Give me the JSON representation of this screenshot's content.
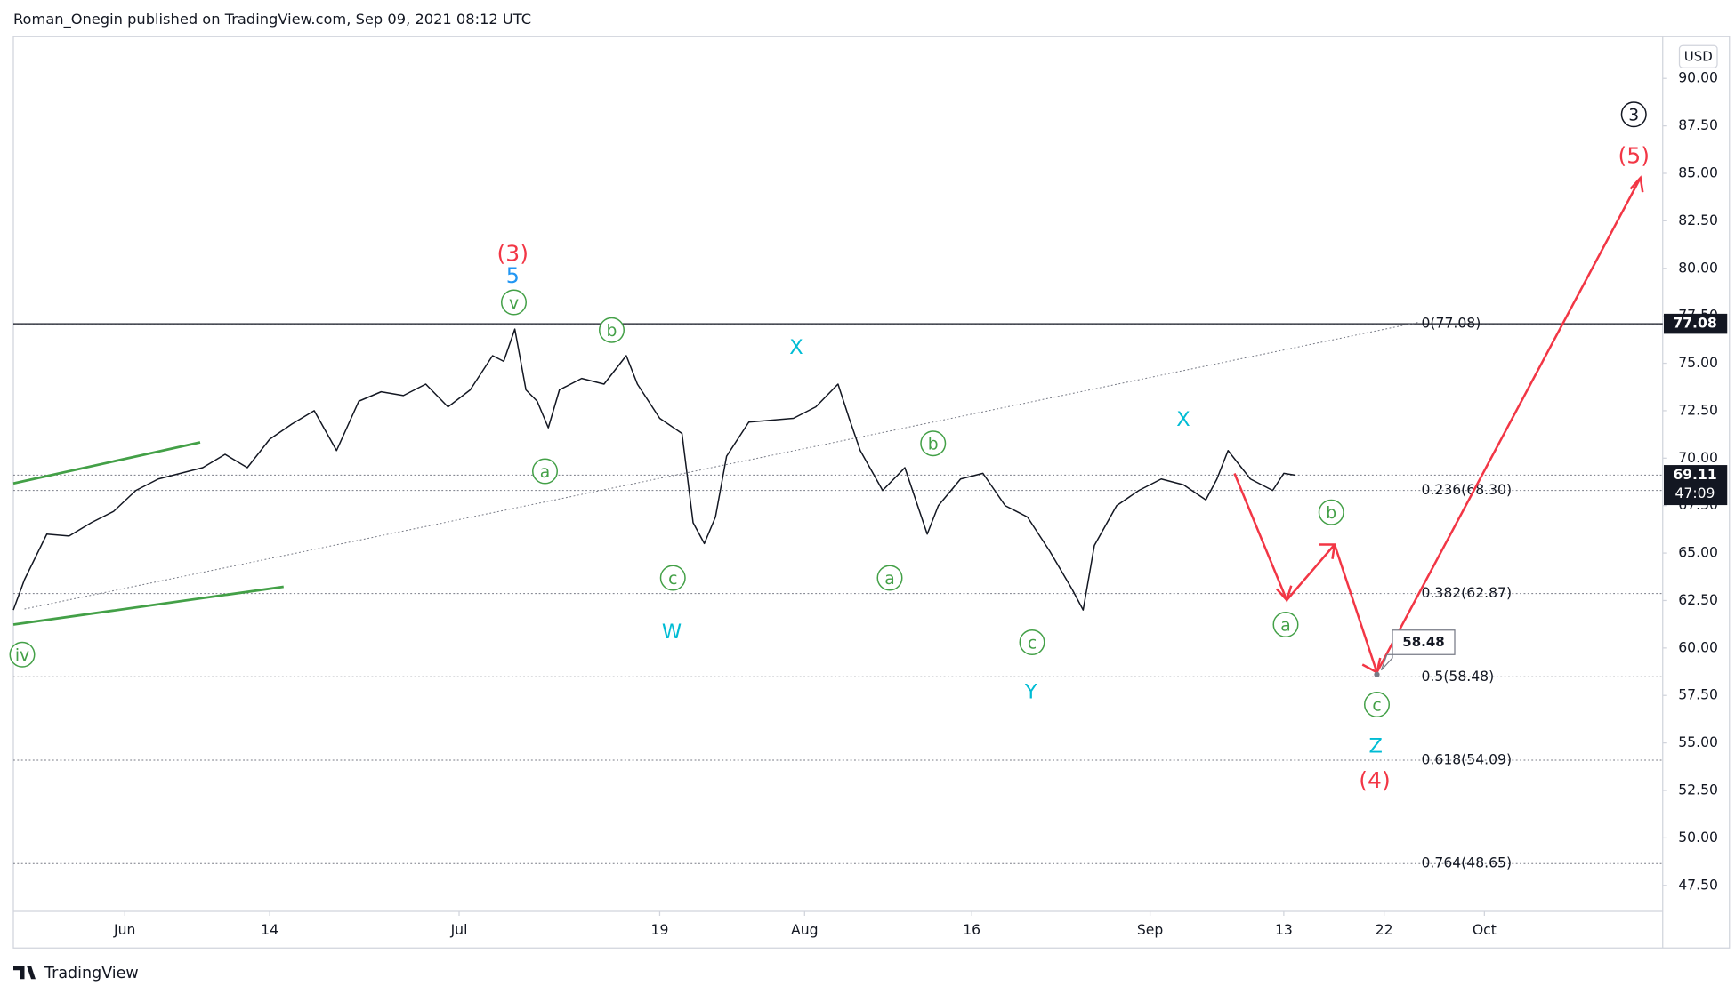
{
  "page": {
    "publisher_line": "Roman_Onegin published on TradingView.com, Sep 09, 2021 08:12 UTC",
    "brand": "TradingView"
  },
  "chart_data": {
    "type": "line",
    "color": "#131722",
    "currency": "USD",
    "x": [
      "2021-05-22",
      "2021-05-23",
      "2021-05-25",
      "2021-05-27",
      "2021-05-29",
      "2021-05-31",
      "2021-06-02",
      "2021-06-04",
      "2021-06-06",
      "2021-06-08",
      "2021-06-10",
      "2021-06-12",
      "2021-06-14",
      "2021-06-16",
      "2021-06-18",
      "2021-06-20",
      "2021-06-22",
      "2021-06-24",
      "2021-06-26",
      "2021-06-28",
      "2021-06-30",
      "2021-07-02",
      "2021-07-04",
      "2021-07-05",
      "2021-07-06",
      "2021-07-07",
      "2021-07-08",
      "2021-07-09",
      "2021-07-10",
      "2021-07-12",
      "2021-07-14",
      "2021-07-16",
      "2021-07-17",
      "2021-07-19",
      "2021-07-21",
      "2021-07-22",
      "2021-07-23",
      "2021-07-24",
      "2021-07-25",
      "2021-07-27",
      "2021-07-29",
      "2021-07-31",
      "2021-08-02",
      "2021-08-04",
      "2021-08-05",
      "2021-08-06",
      "2021-08-08",
      "2021-08-10",
      "2021-08-12",
      "2021-08-13",
      "2021-08-15",
      "2021-08-17",
      "2021-08-19",
      "2021-08-21",
      "2021-08-23",
      "2021-08-25",
      "2021-08-26",
      "2021-08-27",
      "2021-08-29",
      "2021-08-31",
      "2021-09-02",
      "2021-09-04",
      "2021-09-06",
      "2021-09-07",
      "2021-09-08",
      "2021-09-10",
      "2021-09-12",
      "2021-09-13",
      "2021-09-14"
    ],
    "values": [
      62.0,
      63.6,
      66.0,
      65.9,
      66.6,
      67.2,
      68.3,
      68.9,
      69.2,
      69.5,
      70.2,
      69.5,
      71.0,
      71.8,
      72.5,
      70.4,
      73.0,
      73.5,
      73.3,
      73.9,
      72.7,
      73.6,
      75.4,
      75.1,
      76.8,
      73.6,
      73.0,
      71.6,
      73.6,
      74.2,
      73.9,
      75.4,
      73.9,
      72.1,
      71.3,
      66.6,
      65.5,
      66.9,
      70.1,
      71.9,
      72.0,
      72.1,
      72.7,
      73.9,
      72.1,
      70.4,
      68.3,
      69.5,
      66.0,
      67.5,
      68.9,
      69.2,
      67.5,
      66.9,
      65.1,
      63.1,
      62.0,
      65.4,
      67.5,
      68.3,
      68.9,
      68.6,
      67.8,
      68.9,
      70.4,
      68.9,
      68.3,
      69.2,
      69.11
    ],
    "xlim": [
      "2021-05-22",
      "2021-10-17"
    ],
    "xticks": [
      {
        "value": "2021-06-01",
        "label": "Jun"
      },
      {
        "value": "2021-06-14",
        "label": "14"
      },
      {
        "value": "2021-07-01",
        "label": "Jul"
      },
      {
        "value": "2021-07-19",
        "label": "19"
      },
      {
        "value": "2021-08-01",
        "label": "Aug"
      },
      {
        "value": "2021-08-16",
        "label": "16"
      },
      {
        "value": "2021-09-01",
        "label": "Sep"
      },
      {
        "value": "2021-09-13",
        "label": "13"
      },
      {
        "value": "2021-09-22",
        "label": "22"
      },
      {
        "value": "2021-10-01",
        "label": "Oct"
      }
    ],
    "ylim": [
      44.2,
      92.2
    ],
    "yticks": [
      {
        "value": 47.5,
        "label": "47.50"
      },
      {
        "value": 50,
        "label": "50.00"
      },
      {
        "value": 52.5,
        "label": "52.50"
      },
      {
        "value": 55,
        "label": "55.00"
      },
      {
        "value": 57.5,
        "label": "57.50"
      },
      {
        "value": 60,
        "label": "60.00"
      },
      {
        "value": 62.5,
        "label": "62.50"
      },
      {
        "value": 65,
        "label": "65.00"
      },
      {
        "value": 67.5,
        "label": "67.50"
      },
      {
        "value": 70,
        "label": "70.00"
      },
      {
        "value": 72.5,
        "label": "72.50"
      },
      {
        "value": 75,
        "label": "75.00"
      },
      {
        "value": 77.5,
        "label": "77.50"
      },
      {
        "value": 80,
        "label": "80.00"
      },
      {
        "value": 82.5,
        "label": "82.50"
      },
      {
        "value": 85,
        "label": "85.00"
      },
      {
        "value": 87.5,
        "label": "87.50"
      },
      {
        "value": 90,
        "label": "90.00"
      }
    ],
    "fib_levels": [
      {
        "value": 77.08,
        "label": "0(77.08)"
      },
      {
        "value": 68.3,
        "label": "0.236(68.30)"
      },
      {
        "value": 62.87,
        "label": "0.382(62.87)"
      },
      {
        "value": 58.48,
        "label": "0.5(58.48)"
      },
      {
        "value": 54.09,
        "label": "0.618(54.09)"
      },
      {
        "value": 48.65,
        "label": "0.764(48.65)"
      }
    ],
    "level_marker": 77.08,
    "last_price": 69.11,
    "countdown": "47:09",
    "callout": 58.48,
    "annotations": [
      "(3)",
      "5",
      "v",
      "b",
      "a",
      "c",
      "W",
      "X",
      "b",
      "a",
      "c",
      "Y",
      "X",
      "b",
      "a",
      "c",
      "Z",
      "(4)",
      "iv",
      "3",
      "(5)"
    ]
  }
}
